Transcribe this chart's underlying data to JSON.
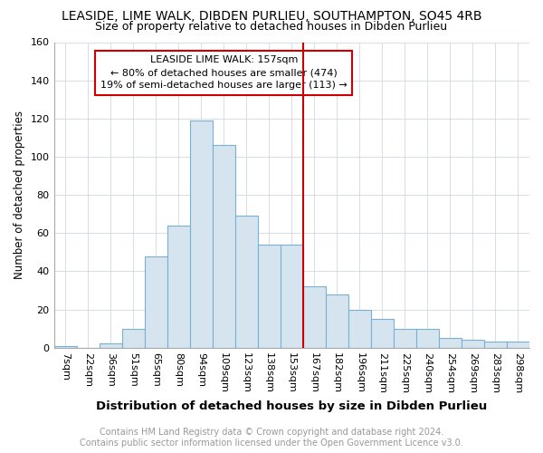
{
  "title": "LEASIDE, LIME WALK, DIBDEN PURLIEU, SOUTHAMPTON, SO45 4RB",
  "subtitle": "Size of property relative to detached houses in Dibden Purlieu",
  "xlabel": "Distribution of detached houses by size in Dibden Purlieu",
  "ylabel": "Number of detached properties",
  "categories": [
    "7sqm",
    "22sqm",
    "36sqm",
    "51sqm",
    "65sqm",
    "80sqm",
    "94sqm",
    "109sqm",
    "123sqm",
    "138sqm",
    "153sqm",
    "167sqm",
    "182sqm",
    "196sqm",
    "211sqm",
    "225sqm",
    "240sqm",
    "254sqm",
    "269sqm",
    "283sqm",
    "298sqm"
  ],
  "values": [
    1,
    0,
    2,
    10,
    48,
    64,
    119,
    106,
    69,
    54,
    54,
    32,
    28,
    20,
    15,
    10,
    10,
    5,
    4,
    3,
    3
  ],
  "bar_color": "#d6e4f0",
  "bar_edge_color": "#7ab0d4",
  "vline_index": 10,
  "vline_color": "#cc0000",
  "annotation_title": "LEASIDE LIME WALK: 157sqm",
  "annotation_line1": "← 80% of detached houses are smaller (474)",
  "annotation_line2": "19% of semi-detached houses are larger (113) →",
  "annotation_box_color": "#ffffff",
  "annotation_box_edge": "#cc0000",
  "ylim": [
    0,
    160
  ],
  "yticks": [
    0,
    20,
    40,
    60,
    80,
    100,
    120,
    140,
    160
  ],
  "footer_line1": "Contains HM Land Registry data © Crown copyright and database right 2024.",
  "footer_line2": "Contains public sector information licensed under the Open Government Licence v3.0.",
  "title_fontsize": 10,
  "subtitle_fontsize": 9,
  "xlabel_fontsize": 9.5,
  "ylabel_fontsize": 8.5,
  "tick_fontsize": 8,
  "annotation_fontsize": 8,
  "footer_fontsize": 7
}
